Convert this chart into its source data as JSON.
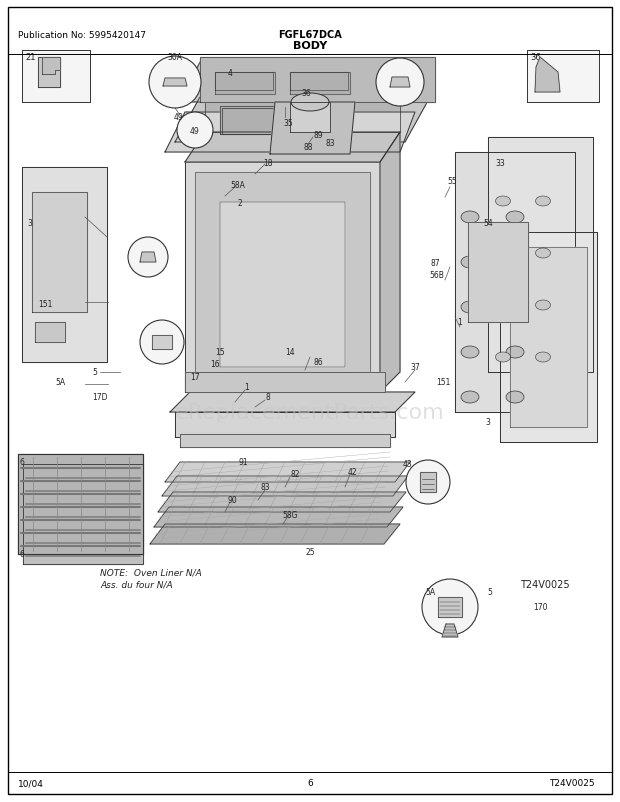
{
  "title": "BODY",
  "header_left": "Publication No: 5995420147",
  "header_center": "FGFL67DCA",
  "footer_left": "10/04",
  "footer_center": "6",
  "footer_right": "T24V0025",
  "note_line1": "NOTE:  Oven Liner N/A",
  "note_line2": "Ass. du four N/A",
  "bg_color": "#ffffff",
  "border_color": "#000000",
  "text_color": "#000000",
  "watermark_text": "eReplacementParts.com",
  "watermark_color": "#c8c8c8",
  "watermark_fontsize": 16,
  "figwidth": 6.2,
  "figheight": 8.03,
  "dpi": 100
}
